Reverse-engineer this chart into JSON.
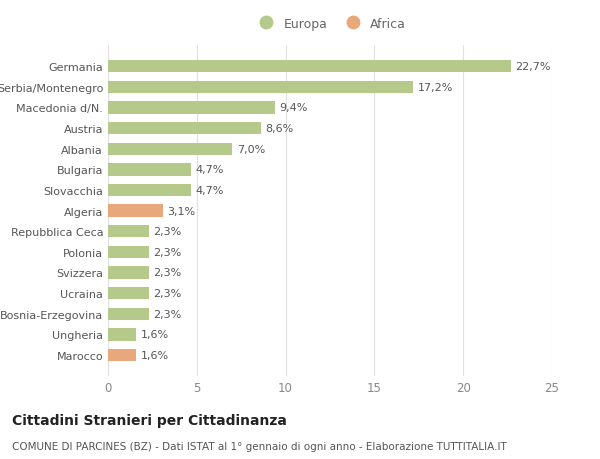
{
  "categories": [
    "Germania",
    "Serbia/Montenegro",
    "Macedonia d/N.",
    "Austria",
    "Albania",
    "Bulgaria",
    "Slovacchia",
    "Algeria",
    "Repubblica Ceca",
    "Polonia",
    "Svizzera",
    "Ucraina",
    "Bosnia-Erzegovina",
    "Ungheria",
    "Marocco"
  ],
  "values": [
    22.7,
    17.2,
    9.4,
    8.6,
    7.0,
    4.7,
    4.7,
    3.1,
    2.3,
    2.3,
    2.3,
    2.3,
    2.3,
    1.6,
    1.6
  ],
  "labels": [
    "22,7%",
    "17,2%",
    "9,4%",
    "8,6%",
    "7,0%",
    "4,7%",
    "4,7%",
    "3,1%",
    "2,3%",
    "2,3%",
    "2,3%",
    "2,3%",
    "2,3%",
    "1,6%",
    "1,6%"
  ],
  "colors": [
    "#b5c98a",
    "#b5c98a",
    "#b5c98a",
    "#b5c98a",
    "#b5c98a",
    "#b5c98a",
    "#b5c98a",
    "#e8a87c",
    "#b5c98a",
    "#b5c98a",
    "#b5c98a",
    "#b5c98a",
    "#b5c98a",
    "#b5c98a",
    "#e8a87c"
  ],
  "europa_color": "#b5c98a",
  "africa_color": "#e8a87c",
  "xlim": [
    0,
    25
  ],
  "xticks": [
    0,
    5,
    10,
    15,
    20,
    25
  ],
  "title": "Cittadini Stranieri per Cittadinanza",
  "subtitle": "COMUNE DI PARCINES (BZ) - Dati ISTAT al 1° gennaio di ogni anno - Elaborazione TUTTITALIA.IT",
  "background_color": "#ffffff",
  "grid_color": "#e0e0e0",
  "bar_label_fontsize": 8,
  "ytick_fontsize": 8,
  "xtick_fontsize": 8.5,
  "title_fontsize": 10,
  "subtitle_fontsize": 7.5,
  "label_color": "#555555",
  "bar_height": 0.6
}
